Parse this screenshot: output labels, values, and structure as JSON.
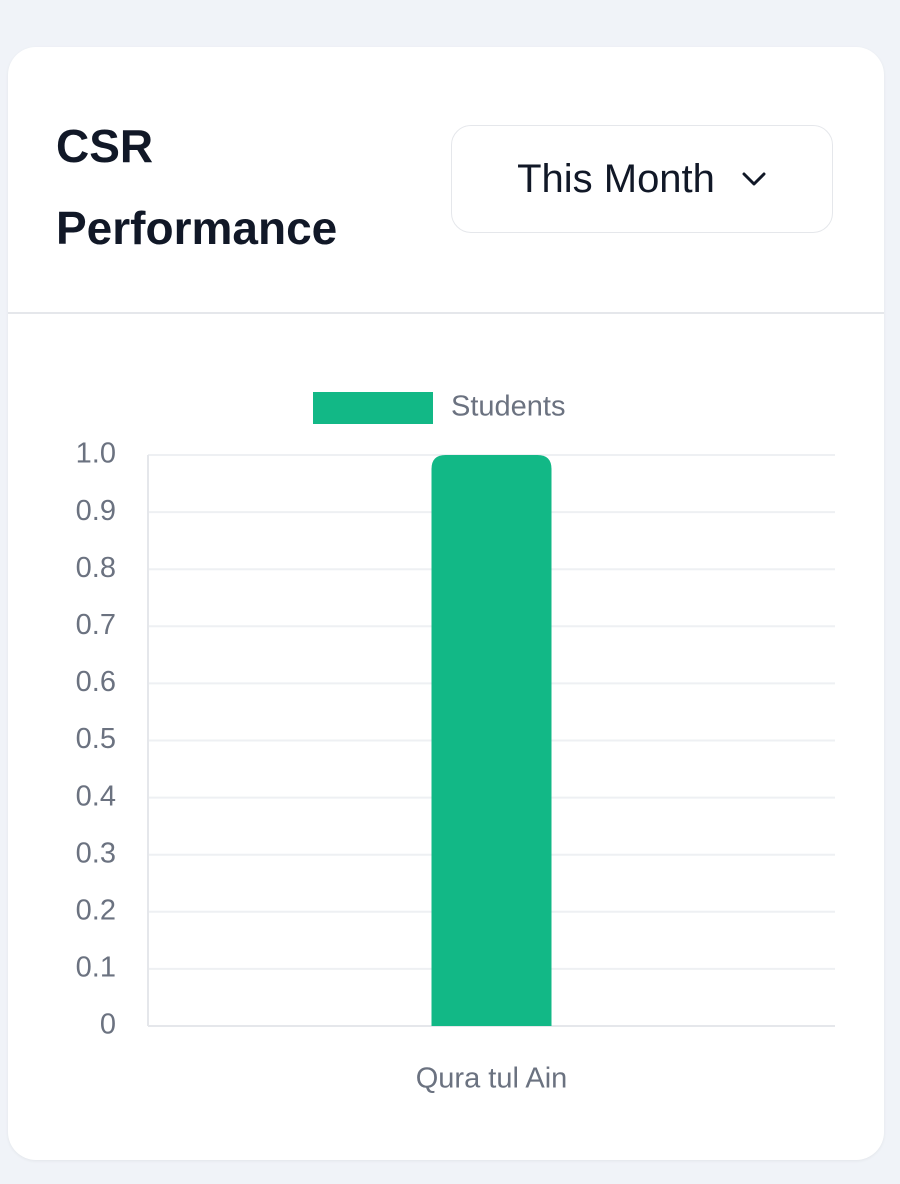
{
  "header": {
    "title": "CSR Performance",
    "dropdown": "This Month"
  },
  "chart_data": {
    "type": "bar",
    "categories": [
      "Qura tul Ain"
    ],
    "series": [
      {
        "name": "Students",
        "color": "#12b886",
        "values": [
          1
        ]
      }
    ],
    "ylim": [
      0,
      1
    ],
    "yticks": [
      0,
      0.1,
      0.2,
      0.3,
      0.4,
      0.5,
      0.6,
      0.7,
      0.8,
      0.9,
      {
        "value": 1,
        "label": "1.0"
      }
    ],
    "grid": true
  }
}
